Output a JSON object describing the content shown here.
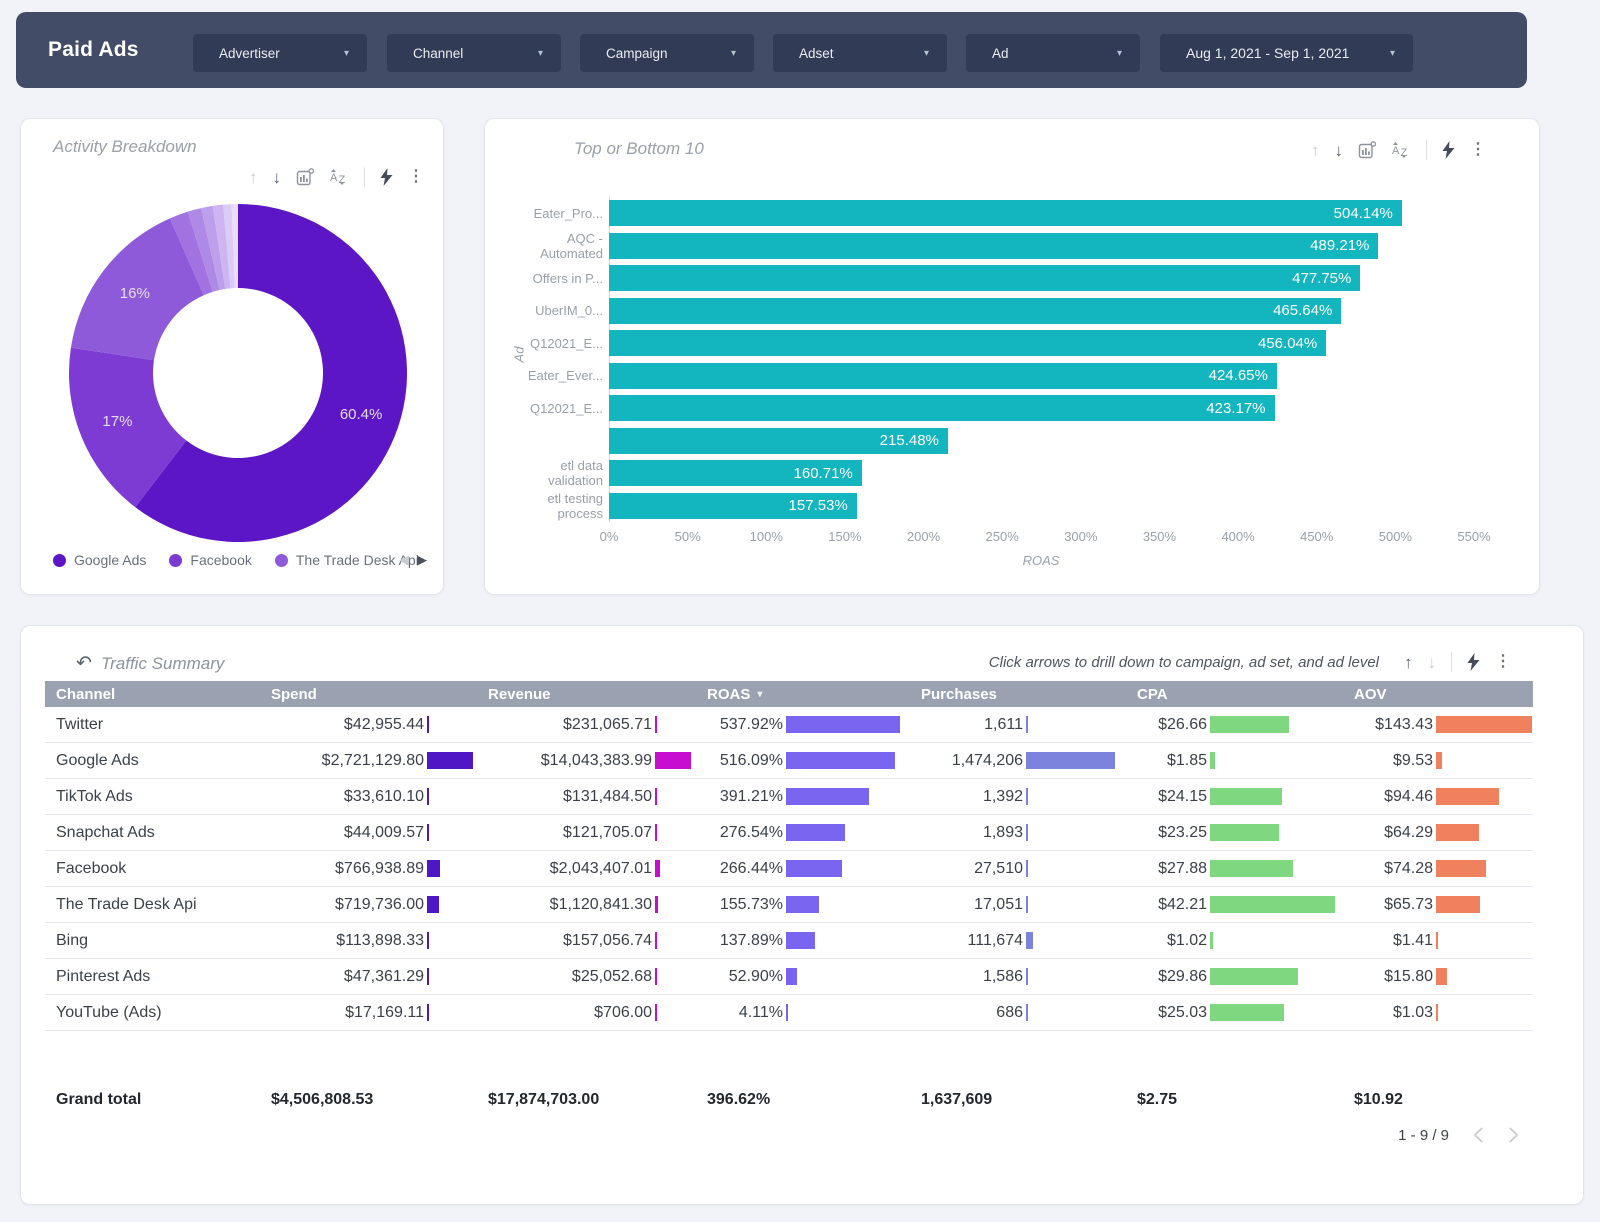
{
  "navbar": {
    "title": "Paid Ads",
    "filters": [
      {
        "label": "Advertiser"
      },
      {
        "label": "Channel"
      },
      {
        "label": "Campaign"
      },
      {
        "label": "Adset"
      },
      {
        "label": "Ad"
      }
    ],
    "date_range": "Aug 1, 2021 - Sep 1, 2021"
  },
  "activity_card": {
    "title": "Activity Breakdown"
  },
  "top_bottom_card": {
    "title": "Top or Bottom 10"
  },
  "chart_data": [
    {
      "type": "pie",
      "title": "Activity Breakdown",
      "donut": true,
      "series": [
        {
          "label": "Google Ads",
          "value": 60.4,
          "display": "60.4%",
          "color": "#5c16c5"
        },
        {
          "label": "Facebook",
          "value": 17,
          "display": "17%",
          "color": "#7d3bd3"
        },
        {
          "label": "The Trade Desk Api",
          "value": 16,
          "display": "16%",
          "color": "#8f5ad9"
        },
        {
          "label": "",
          "value": 1.8,
          "display": "",
          "color": "#a173e0"
        },
        {
          "label": "",
          "value": 1.3,
          "display": "",
          "color": "#af89e6"
        },
        {
          "label": "",
          "value": 1.1,
          "display": "",
          "color": "#bd9fec"
        },
        {
          "label": "",
          "value": 1.0,
          "display": "",
          "color": "#ccb5f1"
        },
        {
          "label": "",
          "value": 0.8,
          "display": "",
          "color": "#dccbf6"
        },
        {
          "label": "",
          "value": 0.6,
          "display": "",
          "color": "#e9defa"
        }
      ],
      "legend": [
        "Google Ads",
        "Facebook",
        "The Trade Desk Api"
      ],
      "legend_position": "bottom"
    },
    {
      "type": "bar",
      "orientation": "horizontal",
      "title": "Top or Bottom 10",
      "xlabel": "ROAS",
      "ylabel": "Ad",
      "xlim": [
        0,
        550
      ],
      "x_ticks": [
        "0%",
        "50%",
        "100%",
        "150%",
        "200%",
        "250%",
        "300%",
        "350%",
        "400%",
        "450%",
        "500%",
        "550%"
      ],
      "bar_color": "#13b5be",
      "categories": [
        "Eater_Pro...",
        "AQC -\nAutomated",
        "Offers in P...",
        "UberIM_0...",
        "Q12021_E...",
        "Eater_Ever...",
        "Q12021_E...",
        "",
        "etl data\nvalidation",
        "etl testing\nprocess"
      ],
      "values": [
        504.14,
        489.21,
        477.75,
        465.64,
        456.04,
        424.65,
        423.17,
        215.48,
        160.71,
        157.53
      ],
      "value_labels": [
        "504.14%",
        "489.21%",
        "477.75%",
        "465.64%",
        "456.04%",
        "424.65%",
        "423.17%",
        "215.48%",
        "160.71%",
        "157.53%"
      ]
    }
  ],
  "table_card": {
    "title": "Traffic Summary",
    "hint": "Click arrows to drill down to campaign, ad set, and ad level",
    "columns": [
      "Channel",
      "Spend",
      "Revenue",
      "ROAS",
      "Purchases",
      "CPA",
      "AOV"
    ],
    "sort_column": "ROAS",
    "bar_colors": {
      "spend": "#4e16c4",
      "revenue": "#c50ecf",
      "roas": "#7a65f1",
      "purchases": "#7b83dc",
      "cpa": "#7fd880",
      "aov": "#f0815e"
    },
    "rows": [
      {
        "channel": "Twitter",
        "spend": "$42,955.44",
        "revenue": "$231,065.71",
        "roas": "537.92%",
        "purchases": "1,611",
        "cpa": "$26.66",
        "aov": "$143.43"
      },
      {
        "channel": "Google Ads",
        "spend": "$2,721,129.80",
        "revenue": "$14,043,383.99",
        "roas": "516.09%",
        "purchases": "1,474,206",
        "cpa": "$1.85",
        "aov": "$9.53"
      },
      {
        "channel": "TikTok Ads",
        "spend": "$33,610.10",
        "revenue": "$131,484.50",
        "roas": "391.21%",
        "purchases": "1,392",
        "cpa": "$24.15",
        "aov": "$94.46"
      },
      {
        "channel": "Snapchat Ads",
        "spend": "$44,009.57",
        "revenue": "$121,705.07",
        "roas": "276.54%",
        "purchases": "1,893",
        "cpa": "$23.25",
        "aov": "$64.29"
      },
      {
        "channel": "Facebook",
        "spend": "$766,938.89",
        "revenue": "$2,043,407.01",
        "roas": "266.44%",
        "purchases": "27,510",
        "cpa": "$27.88",
        "aov": "$74.28"
      },
      {
        "channel": "The Trade Desk Api",
        "spend": "$719,736.00",
        "revenue": "$1,120,841.30",
        "roas": "155.73%",
        "purchases": "17,051",
        "cpa": "$42.21",
        "aov": "$65.73"
      },
      {
        "channel": "Bing",
        "spend": "$113,898.33",
        "revenue": "$157,056.74",
        "roas": "137.89%",
        "purchases": "111,674",
        "cpa": "$1.02",
        "aov": "$1.41"
      },
      {
        "channel": "Pinterest Ads",
        "spend": "$47,361.29",
        "revenue": "$25,052.68",
        "roas": "52.90%",
        "purchases": "1,586",
        "cpa": "$29.86",
        "aov": "$15.80"
      },
      {
        "channel": "YouTube (Ads)",
        "spend": "$17,169.11",
        "revenue": "$706.00",
        "roas": "4.11%",
        "purchases": "686",
        "cpa": "$25.03",
        "aov": "$1.03"
      }
    ],
    "grand_total": {
      "channel": "Grand total",
      "spend": "$4,506,808.53",
      "revenue": "$17,874,703.00",
      "roas": "396.62%",
      "purchases": "1,637,609",
      "cpa": "$2.75",
      "aov": "$10.92"
    },
    "pagination": "1 - 9 / 9"
  }
}
